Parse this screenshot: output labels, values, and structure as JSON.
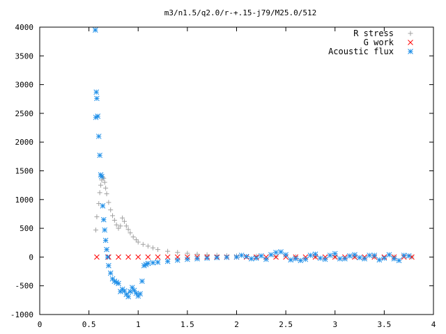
{
  "chart_data": {
    "type": "scatter",
    "title": "m3/n1.5/q2.0/r-+.15-j79/M25.0/512",
    "xlabel": "",
    "ylabel": "",
    "xlim": [
      0,
      4
    ],
    "ylim": [
      -1000,
      4000
    ],
    "x_ticks": [
      0,
      0.5,
      1,
      1.5,
      2,
      2.5,
      3,
      3.5,
      4
    ],
    "x_tick_labels": [
      "0",
      "0.5",
      "1",
      "1.5",
      "2",
      "2.5",
      "3",
      "3.5",
      "4"
    ],
    "y_ticks": [
      -1000,
      -500,
      0,
      500,
      1000,
      1500,
      2000,
      2500,
      3000,
      3500,
      4000
    ],
    "y_tick_labels": [
      "-1000",
      "-500",
      "0",
      "500",
      "1000",
      "1500",
      "2000",
      "2500",
      "3000",
      "3500",
      "4000"
    ],
    "grid": false,
    "legend_position": "top-right",
    "series": [
      {
        "name": "R stress",
        "marker": "plus",
        "color": "#a0a0a0",
        "x": [
          0.57,
          0.58,
          0.6,
          0.61,
          0.62,
          0.63,
          0.64,
          0.65,
          0.66,
          0.67,
          0.68,
          0.7,
          0.72,
          0.74,
          0.76,
          0.78,
          0.8,
          0.82,
          0.84,
          0.86,
          0.88,
          0.9,
          0.92,
          0.95,
          0.98,
          1.0,
          1.05,
          1.1,
          1.15,
          1.2,
          1.3,
          1.4,
          1.5,
          1.6,
          1.7,
          1.8,
          1.9,
          2.0,
          2.2,
          2.4,
          2.6,
          2.8,
          3.0,
          3.2,
          3.4,
          3.6,
          3.78
        ],
        "y": [
          470,
          700,
          930,
          1120,
          1250,
          1340,
          1390,
          1370,
          1300,
          1200,
          1100,
          950,
          820,
          720,
          640,
          560,
          500,
          540,
          680,
          620,
          540,
          480,
          420,
          350,
          300,
          260,
          220,
          190,
          160,
          130,
          100,
          80,
          65,
          50,
          40,
          30,
          25,
          20,
          15,
          10,
          8,
          6,
          5,
          4,
          3,
          2,
          2
        ]
      },
      {
        "name": "G work",
        "marker": "cross",
        "color": "#ff0000",
        "x": [
          0.58,
          0.7,
          0.8,
          0.9,
          1.0,
          1.1,
          1.2,
          1.3,
          1.4,
          1.5,
          1.6,
          1.7,
          1.8,
          1.9,
          2.0,
          2.1,
          2.2,
          2.3,
          2.4,
          2.5,
          2.6,
          2.7,
          2.8,
          2.9,
          3.0,
          3.1,
          3.2,
          3.3,
          3.4,
          3.5,
          3.6,
          3.7,
          3.78
        ],
        "y": [
          0,
          0,
          0,
          0,
          0,
          0,
          0,
          0,
          0,
          0,
          0,
          0,
          0,
          0,
          0,
          0,
          0,
          0,
          0,
          0,
          0,
          0,
          0,
          0,
          0,
          0,
          0,
          0,
          0,
          0,
          0,
          0,
          0
        ]
      },
      {
        "name": "Acoustic flux",
        "marker": "star",
        "color": "#1f8fe8",
        "x": [
          0.565,
          0.57,
          0.575,
          0.58,
          0.59,
          0.6,
          0.61,
          0.62,
          0.63,
          0.64,
          0.65,
          0.66,
          0.67,
          0.68,
          0.69,
          0.7,
          0.72,
          0.74,
          0.76,
          0.78,
          0.8,
          0.82,
          0.84,
          0.86,
          0.88,
          0.9,
          0.92,
          0.94,
          0.96,
          0.98,
          1.0,
          1.02,
          1.04,
          1.06,
          1.08,
          1.1,
          1.15,
          1.2,
          1.3,
          1.4,
          1.5,
          1.6,
          1.7,
          1.8,
          1.9,
          2.0,
          2.05,
          2.1,
          2.15,
          2.2,
          2.25,
          2.3,
          2.35,
          2.4,
          2.45,
          2.5,
          2.55,
          2.6,
          2.65,
          2.7,
          2.75,
          2.8,
          2.85,
          2.9,
          2.95,
          3.0,
          3.05,
          3.1,
          3.15,
          3.2,
          3.25,
          3.3,
          3.35,
          3.4,
          3.45,
          3.5,
          3.55,
          3.6,
          3.65,
          3.7,
          3.75
        ],
        "y": [
          3950,
          2430,
          2870,
          2760,
          2450,
          2100,
          1770,
          1430,
          1400,
          890,
          650,
          470,
          290,
          130,
          0,
          -150,
          -280,
          -380,
          -420,
          -440,
          -460,
          -600,
          -560,
          -590,
          -650,
          -690,
          -600,
          -530,
          -580,
          -630,
          -680,
          -640,
          -420,
          -150,
          -130,
          -110,
          -100,
          -90,
          -75,
          -55,
          -40,
          -30,
          -20,
          -10,
          -5,
          0,
          30,
          10,
          -30,
          -20,
          20,
          -40,
          40,
          80,
          90,
          40,
          -50,
          -30,
          -60,
          -40,
          30,
          50,
          -20,
          -40,
          30,
          60,
          -30,
          -30,
          20,
          40,
          -10,
          -30,
          30,
          30,
          -50,
          -20,
          40,
          -30,
          -60,
          30,
          20
        ]
      }
    ]
  }
}
